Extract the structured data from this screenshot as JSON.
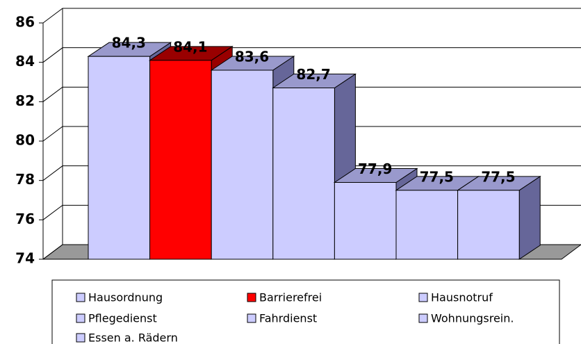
{
  "chart_data": {
    "type": "bar3d",
    "categories": [
      "Hausordnung",
      "Barrierefrei",
      "Hausnotruf",
      "Pflegedienst",
      "Fahrdienst",
      "Wohnungsrein.",
      "Essen a. Rädern"
    ],
    "values": [
      84.3,
      84.1,
      83.6,
      82.7,
      77.9,
      77.5,
      77.5
    ],
    "value_labels": [
      "84,3",
      "84,1",
      "83,6",
      "82,7",
      "77,9",
      "77,5",
      "77,5"
    ],
    "colors": [
      "#ccccff",
      "#ff0000",
      "#ccccff",
      "#ccccff",
      "#ccccff",
      "#ccccff",
      "#ccccff"
    ],
    "ylim": [
      74,
      86
    ],
    "yticks": [
      74,
      76,
      78,
      80,
      82,
      84,
      86
    ],
    "grid": true
  }
}
